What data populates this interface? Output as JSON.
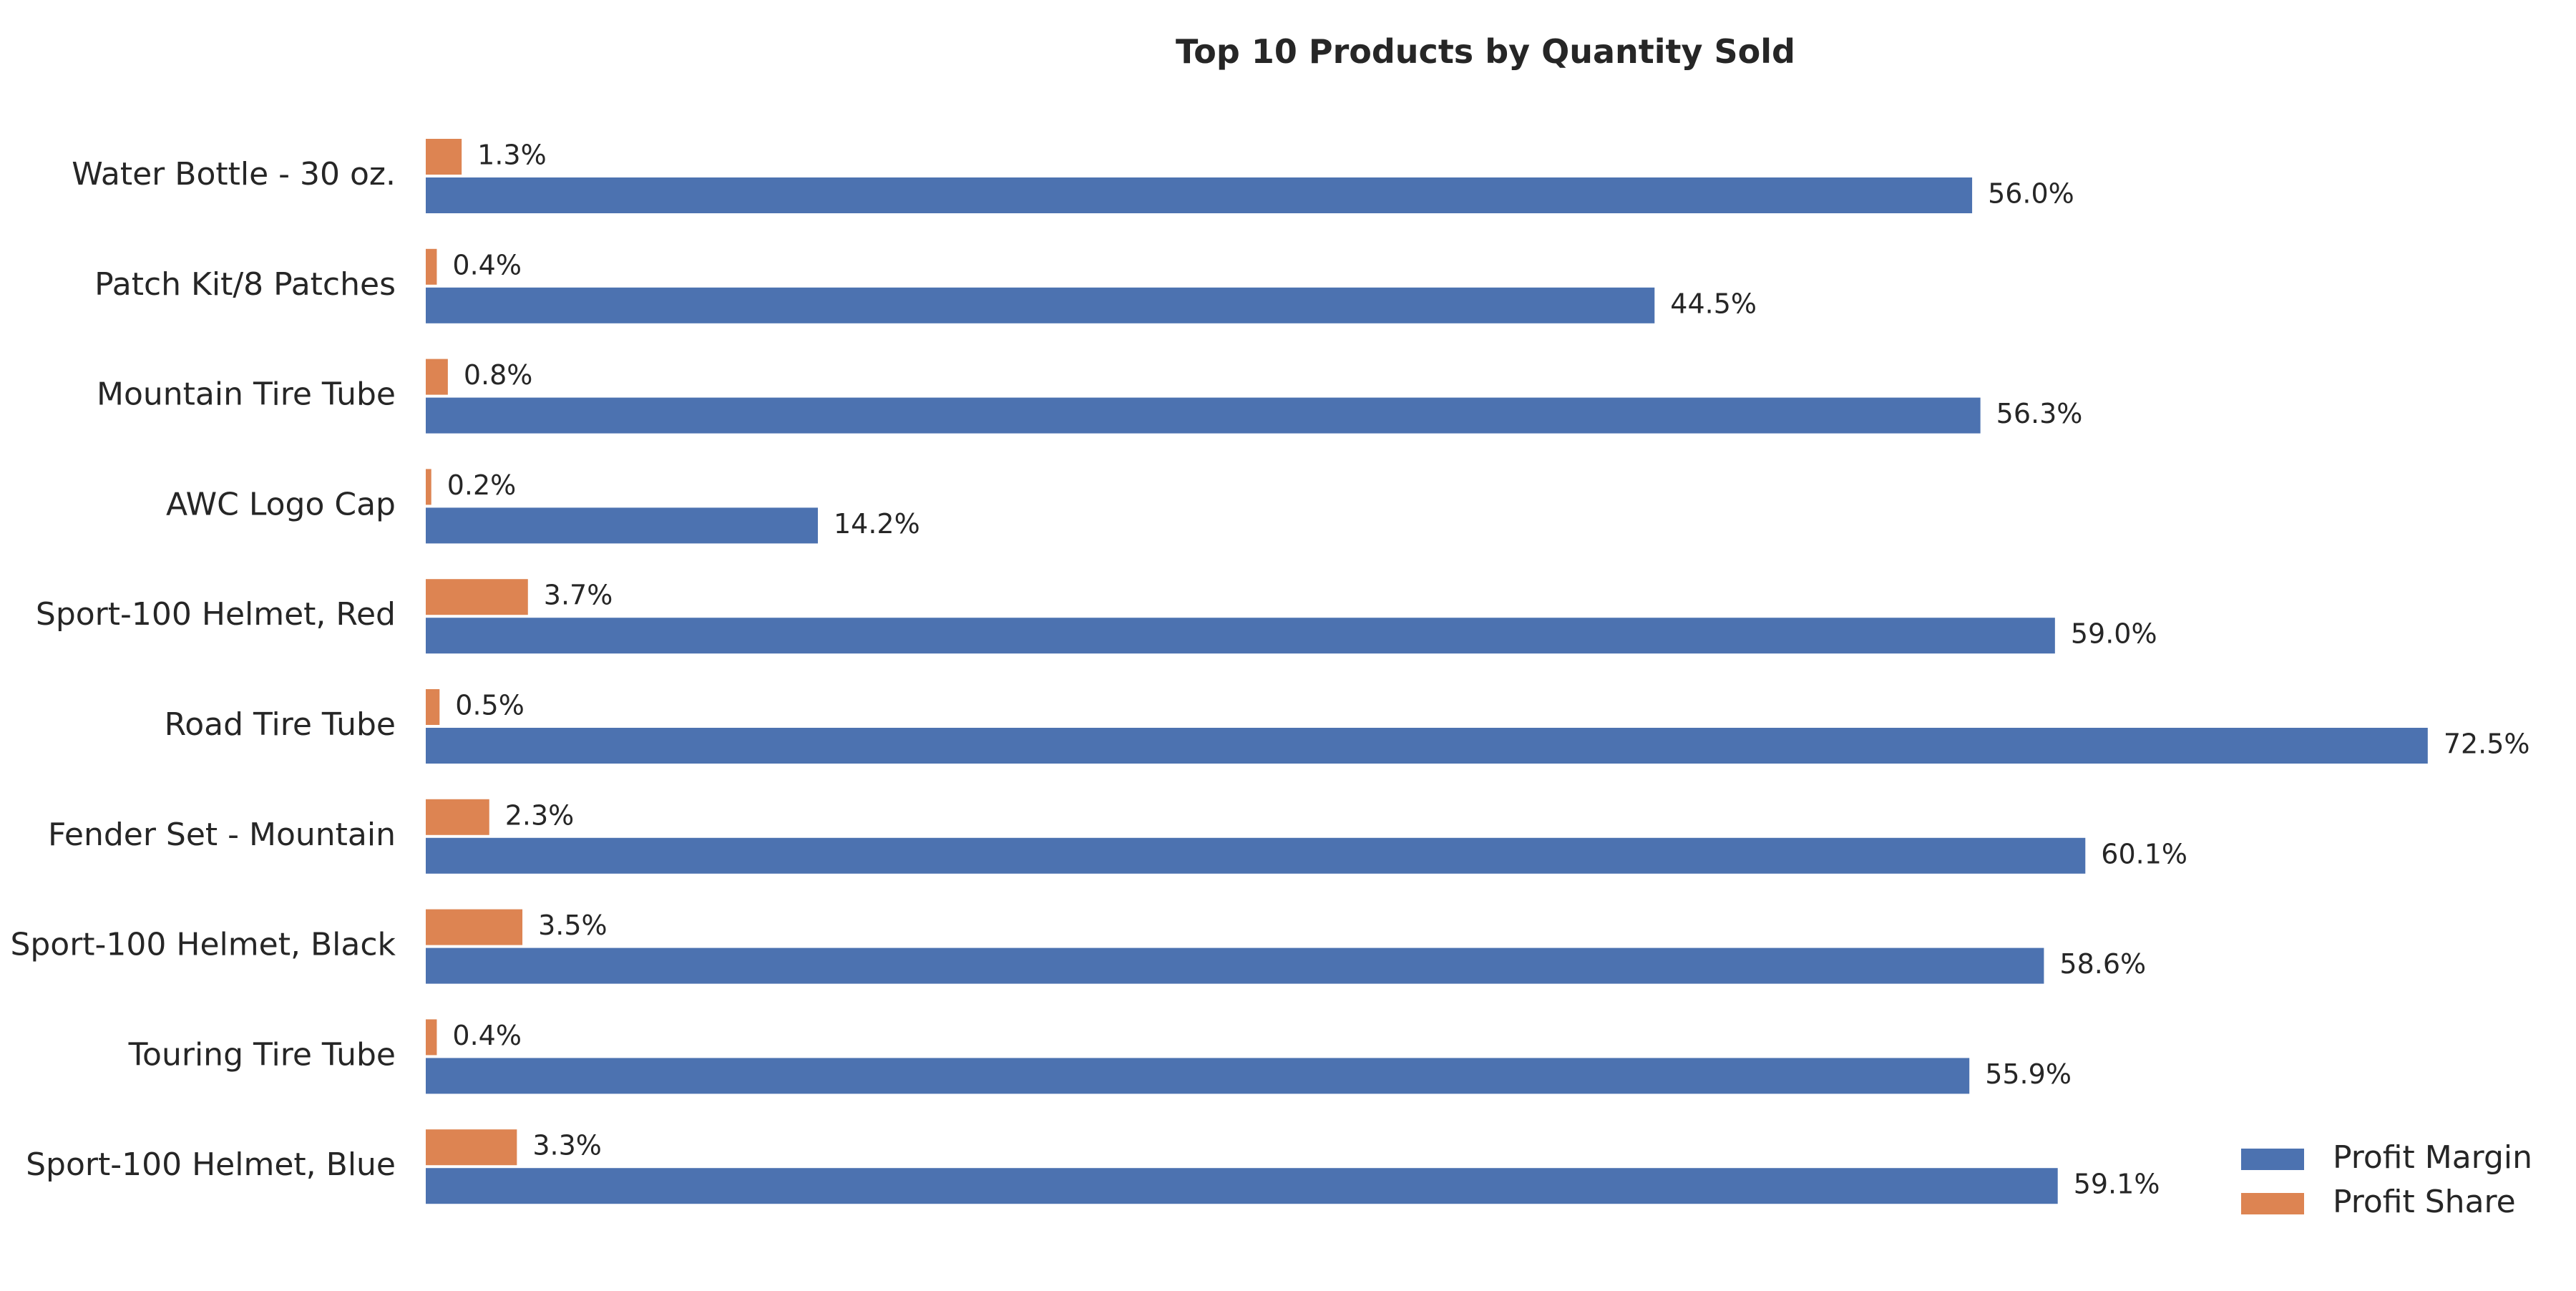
{
  "chart_data": {
    "type": "bar",
    "orientation": "horizontal",
    "title": "Top 10 Products by Quantity Sold",
    "xlabel": "",
    "ylabel": "",
    "xlim": [
      0,
      74.5
    ],
    "grid": false,
    "legend_position": "bottom-right",
    "value_format_suffix": "%",
    "categories": [
      "Water Bottle - 30 oz.",
      "Patch Kit/8 Patches",
      "Mountain Tire Tube",
      "AWC Logo Cap",
      "Sport-100 Helmet, Red",
      "Road Tire Tube",
      "Fender Set - Mountain",
      "Sport-100 Helmet, Black",
      "Touring Tire Tube",
      "Sport-100 Helmet, Blue"
    ],
    "series": [
      {
        "name": "Profit Share",
        "color": "#dd8452",
        "values": [
          1.3,
          0.4,
          0.8,
          0.2,
          3.7,
          0.5,
          2.3,
          3.5,
          0.4,
          3.3
        ]
      },
      {
        "name": "Profit Margin",
        "color": "#4c72b0",
        "values": [
          56.0,
          44.5,
          56.3,
          14.2,
          59.0,
          72.5,
          60.1,
          58.6,
          55.9,
          59.1
        ]
      }
    ],
    "legend_order": [
      "Profit Margin",
      "Profit Share"
    ]
  }
}
